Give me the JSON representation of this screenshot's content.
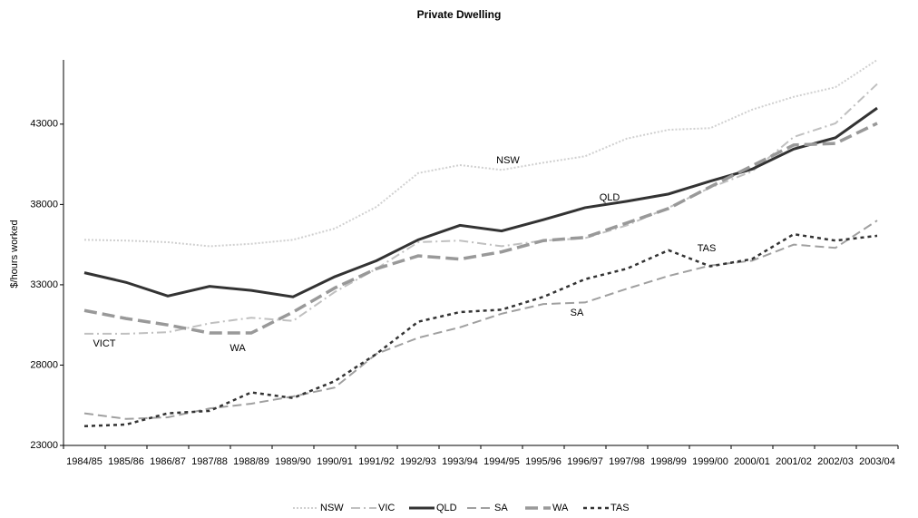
{
  "chart_data": {
    "type": "line",
    "title": "Private Dwelling",
    "y_label": "$/hours worked",
    "categories": [
      "1984/85",
      "1985/86",
      "1986/87",
      "1987/88",
      "1988/89",
      "1989/90",
      "1990/91",
      "1991/92",
      "1992/93",
      "1993/94",
      "1994/95",
      "1995/96",
      "1996/97",
      "1997/98",
      "1998/99",
      "1999/00",
      "2000/01",
      "2001/02",
      "2002/03",
      "2003/04"
    ],
    "ylim": [
      23000,
      47000
    ],
    "yticks": [
      23000,
      28000,
      33000,
      38000,
      43000
    ],
    "series": [
      {
        "name": "NSW",
        "color": "#d0d0d0",
        "values": [
          35800,
          35750,
          35650,
          35400,
          35550,
          35800,
          36500,
          37850,
          39950,
          40450,
          40150,
          40600,
          41000,
          42100,
          42650,
          42750,
          43900,
          44700,
          45300,
          47000
        ]
      },
      {
        "name": "VIC",
        "color": "#c0c0c0",
        "values": [
          29950,
          29950,
          30050,
          30600,
          30950,
          30750,
          32550,
          34000,
          35650,
          35750,
          35400,
          35750,
          35900,
          36700,
          37800,
          39050,
          40050,
          42200,
          43050,
          45500
        ]
      },
      {
        "name": "QLD",
        "color": "#333333",
        "values": [
          33750,
          33150,
          32300,
          32900,
          32650,
          32250,
          33500,
          34500,
          35800,
          36700,
          36350,
          37050,
          37800,
          38200,
          38650,
          39450,
          40200,
          41450,
          42150,
          44000
        ]
      },
      {
        "name": "SA",
        "color": "#a0a0a0",
        "values": [
          25000,
          24650,
          24750,
          25300,
          25600,
          26050,
          26600,
          28700,
          29700,
          30350,
          31200,
          31800,
          31900,
          32750,
          33550,
          34200,
          34500,
          35500,
          35300,
          37000
        ]
      },
      {
        "name": "WA",
        "color": "#999999",
        "values": [
          31400,
          30900,
          30500,
          30000,
          30000,
          31300,
          32800,
          34000,
          34800,
          34600,
          35050,
          35750,
          35950,
          36850,
          37750,
          39100,
          40400,
          41700,
          41800,
          43050
        ]
      },
      {
        "name": "TAS",
        "color": "#333333",
        "values": [
          24200,
          24300,
          25000,
          25150,
          26300,
          25950,
          27000,
          28700,
          30700,
          31300,
          31450,
          32250,
          33350,
          34000,
          35150,
          34150,
          34600,
          36150,
          35750,
          36050
        ]
      }
    ],
    "annotations": [
      "NSW",
      "QLD",
      "TAS",
      "SA",
      "VICT",
      "WA"
    ]
  }
}
